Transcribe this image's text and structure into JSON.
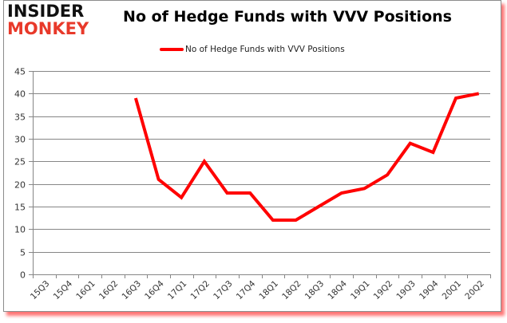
{
  "logo": {
    "line1": "INSIDER",
    "line2": "MONKEY"
  },
  "chart_data": {
    "type": "line",
    "title": "No of Hedge Funds with VVV Positions",
    "xlabel": "",
    "ylabel": "",
    "categories": [
      "15Q3",
      "15Q4",
      "16Q1",
      "16Q2",
      "16Q3",
      "16Q4",
      "17Q1",
      "17Q2",
      "17Q3",
      "17Q4",
      "18Q1",
      "18Q2",
      "18Q3",
      "18Q4",
      "19Q1",
      "19Q2",
      "19Q3",
      "19Q4",
      "20Q1",
      "20Q2"
    ],
    "series": [
      {
        "name": "No of Hedge Funds with VVV Positions",
        "color": "#ff0000",
        "values": [
          null,
          null,
          null,
          null,
          39,
          21,
          17,
          25,
          18,
          18,
          12,
          12,
          15,
          18,
          19,
          22,
          29,
          27,
          39,
          40
        ]
      }
    ],
    "ylim": [
      0,
      45
    ],
    "yticks": [
      0,
      5,
      10,
      15,
      20,
      25,
      30,
      35,
      40,
      45
    ],
    "grid": true,
    "legend_position": "top"
  },
  "colors": {
    "line": "#ff0000",
    "grid": "#868686",
    "shadow": "#ff0000",
    "logo_red": "#e8392a"
  }
}
